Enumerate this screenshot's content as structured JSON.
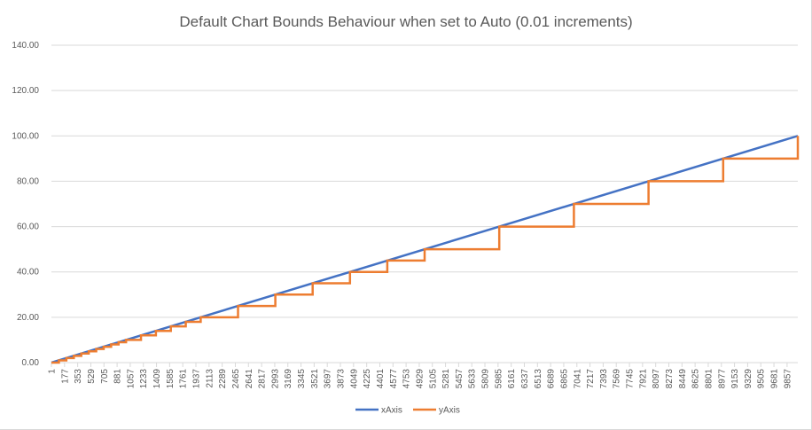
{
  "chart_data": {
    "type": "line",
    "title": "Default Chart Bounds Behaviour when set to Auto (0.01 increments)",
    "xlabel": "",
    "ylabel": "",
    "ylim": [
      0,
      140
    ],
    "y_ticks": [
      "0.00",
      "20.00",
      "40.00",
      "60.00",
      "80.00",
      "100.00",
      "120.00",
      "140.00"
    ],
    "x_range": [
      1,
      10001
    ],
    "x_tick_labels": [
      "1",
      "177",
      "353",
      "529",
      "705",
      "881",
      "1057",
      "1233",
      "1409",
      "1585",
      "1761",
      "1937",
      "2113",
      "2289",
      "2465",
      "2641",
      "2817",
      "2993",
      "3169",
      "3345",
      "3521",
      "3697",
      "3873",
      "4049",
      "4225",
      "4401",
      "4577",
      "4753",
      "4929",
      "5105",
      "5281",
      "5457",
      "5633",
      "5809",
      "5985",
      "6161",
      "6337",
      "6513",
      "6689",
      "6865",
      "7041",
      "7217",
      "7393",
      "7569",
      "7745",
      "7921",
      "8097",
      "8273",
      "8449",
      "8625",
      "8801",
      "8977",
      "9153",
      "9329",
      "9505",
      "9681",
      "9857"
    ],
    "grid": true,
    "legend_position": "bottom",
    "series": [
      {
        "name": "xAxis",
        "color": "#4472c4",
        "points": [
          [
            1,
            0
          ],
          [
            10001,
            100
          ]
        ]
      },
      {
        "name": "yAxis",
        "color": "#ed7d31",
        "steps": [
          {
            "x_start": 1,
            "x_end": 101,
            "y": 0
          },
          {
            "x_start": 101,
            "x_end": 201,
            "y": 1
          },
          {
            "x_start": 201,
            "x_end": 301,
            "y": 2
          },
          {
            "x_start": 301,
            "x_end": 401,
            "y": 3
          },
          {
            "x_start": 401,
            "x_end": 501,
            "y": 4
          },
          {
            "x_start": 501,
            "x_end": 601,
            "y": 5
          },
          {
            "x_start": 601,
            "x_end": 701,
            "y": 6
          },
          {
            "x_start": 701,
            "x_end": 801,
            "y": 7
          },
          {
            "x_start": 801,
            "x_end": 901,
            "y": 8
          },
          {
            "x_start": 901,
            "x_end": 1001,
            "y": 9
          },
          {
            "x_start": 1001,
            "x_end": 1201,
            "y": 10
          },
          {
            "x_start": 1201,
            "x_end": 1401,
            "y": 12
          },
          {
            "x_start": 1401,
            "x_end": 1601,
            "y": 14
          },
          {
            "x_start": 1601,
            "x_end": 1801,
            "y": 16
          },
          {
            "x_start": 1801,
            "x_end": 2001,
            "y": 18
          },
          {
            "x_start": 2001,
            "x_end": 2501,
            "y": 20
          },
          {
            "x_start": 2501,
            "x_end": 3001,
            "y": 25
          },
          {
            "x_start": 3001,
            "x_end": 3501,
            "y": 30
          },
          {
            "x_start": 3501,
            "x_end": 4001,
            "y": 35
          },
          {
            "x_start": 4001,
            "x_end": 4501,
            "y": 40
          },
          {
            "x_start": 4501,
            "x_end": 5001,
            "y": 45
          },
          {
            "x_start": 5001,
            "x_end": 6001,
            "y": 50
          },
          {
            "x_start": 6001,
            "x_end": 7001,
            "y": 60
          },
          {
            "x_start": 7001,
            "x_end": 8001,
            "y": 70
          },
          {
            "x_start": 8001,
            "x_end": 9001,
            "y": 80
          },
          {
            "x_start": 9001,
            "x_end": 10001,
            "y": 90
          },
          {
            "x_start": 10001,
            "x_end": 10001,
            "y": 100
          }
        ]
      }
    ]
  }
}
